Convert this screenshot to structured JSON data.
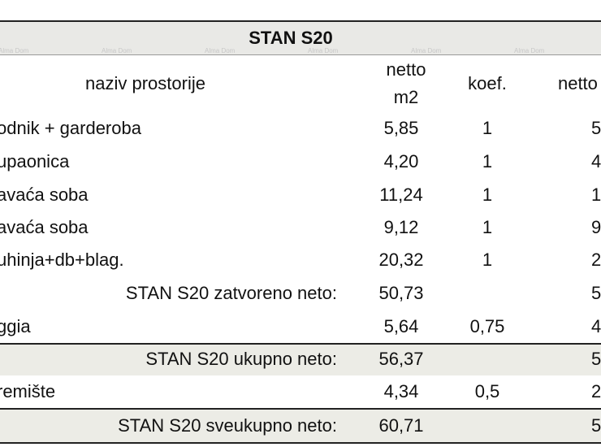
{
  "table": {
    "title": "STAN S20",
    "watermarks": [
      "Alma Dom",
      "Alma Dom",
      "Alma Dom",
      "Alma Dom",
      "Alma Dom",
      "Alma Dom"
    ],
    "header": [
      "naziv prostorije",
      "netto m2",
      "koef.",
      "netto x"
    ],
    "rows": [
      {
        "label": "odnik + garderoba",
        "netto": "5,85",
        "koef": "1",
        "total": "5"
      },
      {
        "label": "upaonica",
        "netto": "4,20",
        "koef": "1",
        "total": "4"
      },
      {
        "label": "avaća soba",
        "netto": "11,24",
        "koef": "1",
        "total": "1"
      },
      {
        "label": "avaća soba",
        "netto": "9,12",
        "koef": "1",
        "total": "9"
      },
      {
        "label": "uhinja+db+blag.",
        "netto": "20,32",
        "koef": "1",
        "total": "2"
      },
      {
        "label": "STAN S20 zatvoreno neto:",
        "netto": "50,73",
        "total": "5",
        "summary": true
      },
      {
        "label": "ggia",
        "netto": "5,64",
        "koef": "0,75",
        "total": "4"
      },
      {
        "label": "STAN S20 ukupno neto:",
        "netto": "56,37",
        "total": "5",
        "summary": true,
        "shaded": true
      },
      {
        "label": "remište",
        "netto": "4,34",
        "koef": "0,5",
        "total": "2"
      },
      {
        "label": "STAN S20 sveukupno neto:",
        "netto": "60,71",
        "total": "5",
        "summary": true,
        "shaded": true
      }
    ]
  }
}
